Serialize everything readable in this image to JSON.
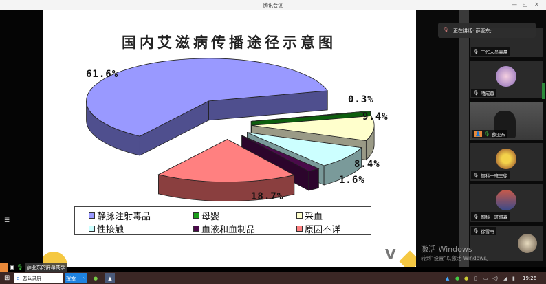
{
  "window": {
    "title": "腾讯会议",
    "minimize": "—",
    "restore": "◱",
    "close": "✕"
  },
  "slide": {
    "title": "国内艾滋病传播途径示意图"
  },
  "chart_data": {
    "type": "pie",
    "title": "国内艾滋病传播途径示意图",
    "style": "3d-exploded",
    "legend_position": "bottom",
    "categories": [
      "母婴",
      "采血",
      "性接触",
      "血液和血制品",
      "原因不详",
      "静脉注射毒品"
    ],
    "values": [
      0.3,
      9.4,
      8.4,
      1.6,
      18.7,
      61.6
    ],
    "labels": [
      "0.3%",
      "9.4%",
      "8.4%",
      "1.6%",
      "18.7%",
      "61.6%"
    ],
    "colors": [
      "#1a9e1a",
      "#ffffcc",
      "#ccffff",
      "#4a0a4a",
      "#ff8080",
      "#9999ff"
    ],
    "side_colors": [
      "#0d5e0d",
      "#9a9a86",
      "#7a9a9a",
      "#2c052c",
      "#8a3f3f",
      "#4f4f8e"
    ],
    "legend": [
      {
        "label": "静脉注射毒品",
        "color": "#9999ff"
      },
      {
        "label": "母婴",
        "color": "#1a9e1a"
      },
      {
        "label": "采血",
        "color": "#ffffcc"
      },
      {
        "label": "性接触",
        "color": "#ccffff"
      },
      {
        "label": "血液和血制品",
        "color": "#4a0a4a"
      },
      {
        "label": "原因不详",
        "color": "#ff8080"
      }
    ]
  },
  "meeting": {
    "speaking": "正在讲话: 薛亚东;",
    "participants": [
      {
        "name": "工作人员高晨"
      },
      {
        "name": "嘻成蓉"
      },
      {
        "name": "薛亚东",
        "video": true
      },
      {
        "name": "智科一班王徐"
      },
      {
        "name": "智科一班盛森"
      },
      {
        "name": "徐雪书"
      }
    ],
    "share_label": "薛亚东的屏幕共享"
  },
  "watermark": {
    "line1": "激活 Windows",
    "line2": "转到\"设置\"以激活 Windows。"
  },
  "taskbar": {
    "search_text": "怎么录屏",
    "search_button": "搜索一下",
    "time": "19:26"
  }
}
